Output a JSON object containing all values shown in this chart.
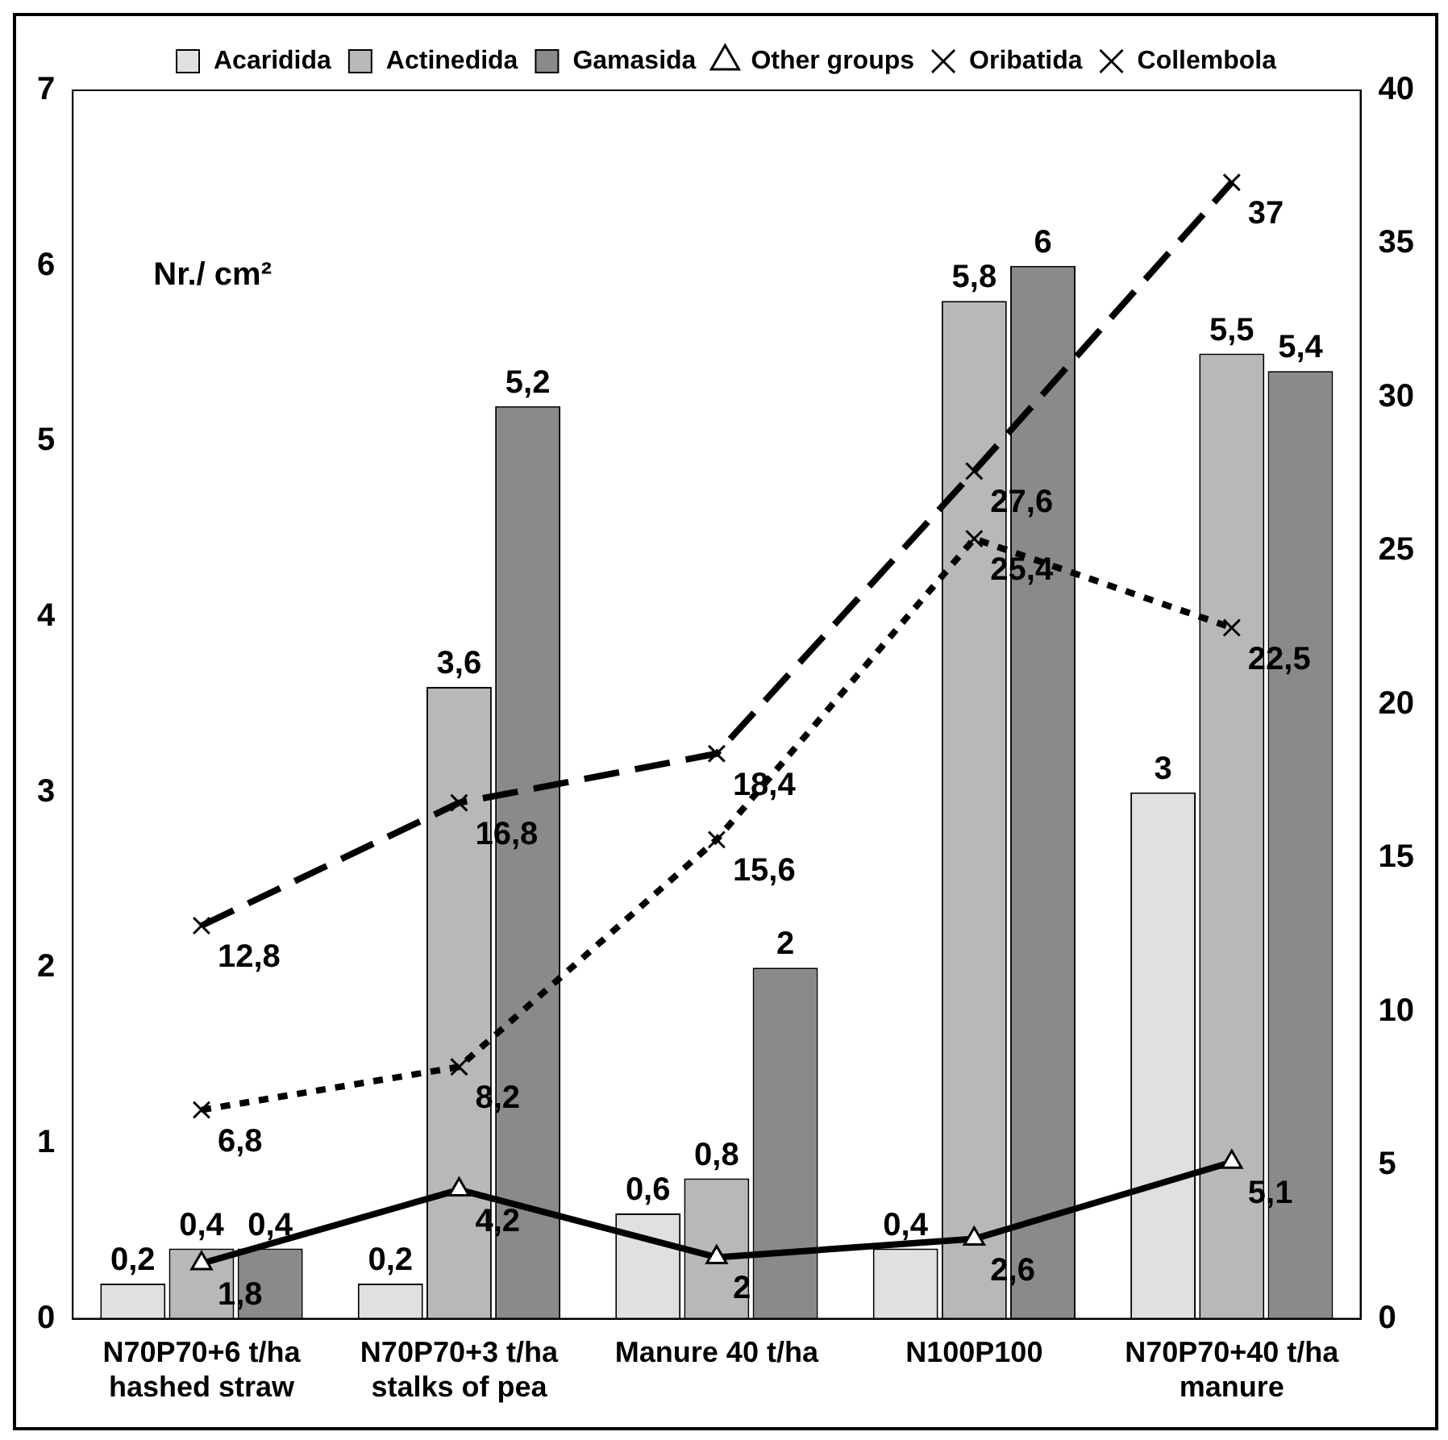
{
  "chart_data": {
    "type": "bar",
    "categories": [
      "N70P70+6 t/ha hashed straw",
      "N70P70+3 t/ha stalks of pea",
      "Manure 40 t/ha",
      "N100P100",
      "N70P70+40 t/ha manure"
    ],
    "series": [
      {
        "name": "Acaridida",
        "color": "#e0e0e0",
        "values": [
          0.2,
          0.2,
          0.6,
          0.4,
          3
        ],
        "value_labels": [
          "0,2",
          "0,2",
          "0,6",
          "0,4",
          "3"
        ]
      },
      {
        "name": "Actinedida",
        "color": "#b8b8b8",
        "values": [
          0.4,
          3.6,
          0.8,
          5.8,
          5.5
        ],
        "value_labels": [
          "0,4",
          "3,6",
          "0,8",
          "5,8",
          "5,5"
        ]
      },
      {
        "name": "Gamasida",
        "color": "#8a8a8a",
        "values": [
          0.4,
          5.2,
          2,
          6,
          5.4
        ],
        "value_labels": [
          "0,4",
          "5,2",
          "2",
          "6",
          "5,4"
        ]
      },
      {
        "name": "Other groups",
        "type": "line",
        "axis": "y2",
        "color": "#000000",
        "marker": "triangle",
        "line_style": "solid",
        "values": [
          1.8,
          4.2,
          2,
          2.6,
          5.1
        ],
        "value_labels": [
          "1,8",
          "4,2",
          "2",
          "2,6",
          "5,1"
        ]
      },
      {
        "name": "Oribatida",
        "type": "line",
        "axis": "y2",
        "color": "#000000",
        "marker": "cross",
        "line_style": "dotted",
        "values": [
          6.8,
          8.2,
          15.6,
          25.4,
          22.5
        ],
        "value_labels": [
          "6,8",
          "8,2",
          "15,6",
          "25,4",
          "22,5"
        ]
      },
      {
        "name": "Collembola",
        "type": "line",
        "axis": "y2",
        "color": "#000000",
        "marker": "cross",
        "line_style": "dashed",
        "values": [
          12.8,
          16.8,
          18.4,
          27.6,
          37
        ],
        "value_labels": [
          "12,8",
          "16,8",
          "18,4",
          "27,6",
          "37"
        ]
      }
    ],
    "ylim": [
      0,
      7
    ],
    "yticks": [
      0,
      1,
      2,
      3,
      4,
      5,
      6,
      7
    ],
    "y2lim": [
      0,
      40
    ],
    "y2ticks": [
      0,
      5,
      10,
      15,
      20,
      25,
      30,
      35,
      40
    ],
    "grid": false,
    "legend": "top",
    "annotations": [
      "Nr./ cm²"
    ]
  }
}
